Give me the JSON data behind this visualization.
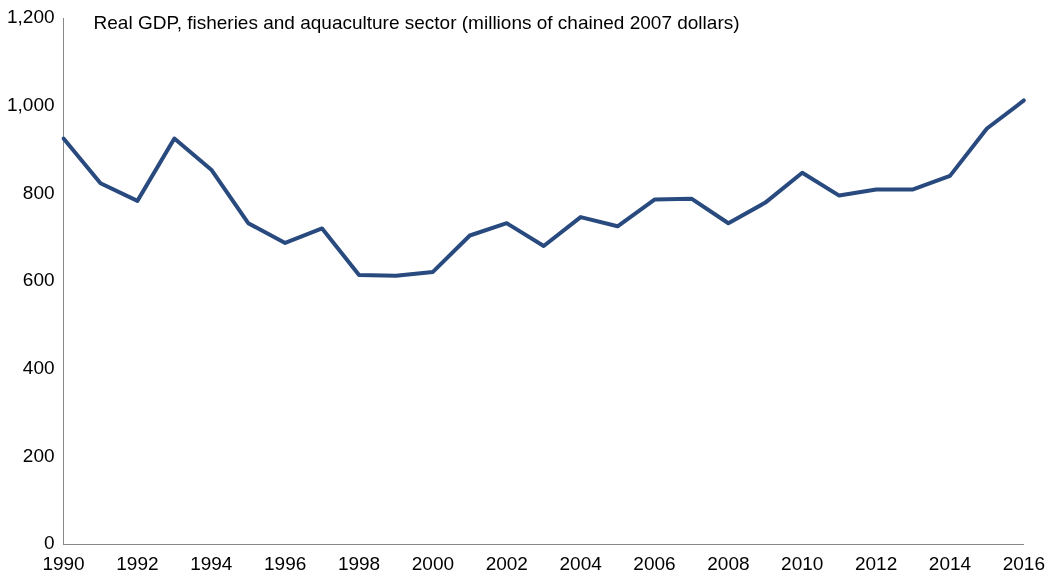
{
  "chart_data": {
    "type": "line",
    "title": "Real GDP, fisheries and aquaculture sector (millions of chained 2007 dollars)",
    "categories": [
      "1990",
      null,
      "1992",
      null,
      "1994",
      null,
      "1996",
      null,
      "1998",
      null,
      "2000",
      null,
      "2002",
      null,
      "2004",
      null,
      "2006",
      null,
      "2008",
      null,
      "2010",
      null,
      "2012",
      null,
      "2014",
      null,
      "2016"
    ],
    "series": [
      {
        "color": "#284a7e",
        "values": [
          925,
          823,
          783,
          925,
          854,
          732,
          687,
          720,
          614,
          612,
          621,
          704,
          732,
          680,
          746,
          725,
          786,
          788,
          732,
          779,
          847,
          795,
          809,
          809,
          840,
          948,
          1012
        ]
      }
    ],
    "ylim": [
      0,
      1200
    ],
    "yticks": [
      0,
      {
        "value": 200,
        "label": "200"
      },
      {
        "value": 400,
        "label": "400"
      },
      {
        "value": 600,
        "label": "600"
      },
      {
        "value": 800,
        "label": "800"
      },
      {
        "value": 1000,
        "label": "1,000"
      },
      {
        "value": 1200,
        "label": "1,200"
      }
    ],
    "grid": false,
    "legend": false,
    "marker": "none",
    "line_style": "solid"
  }
}
